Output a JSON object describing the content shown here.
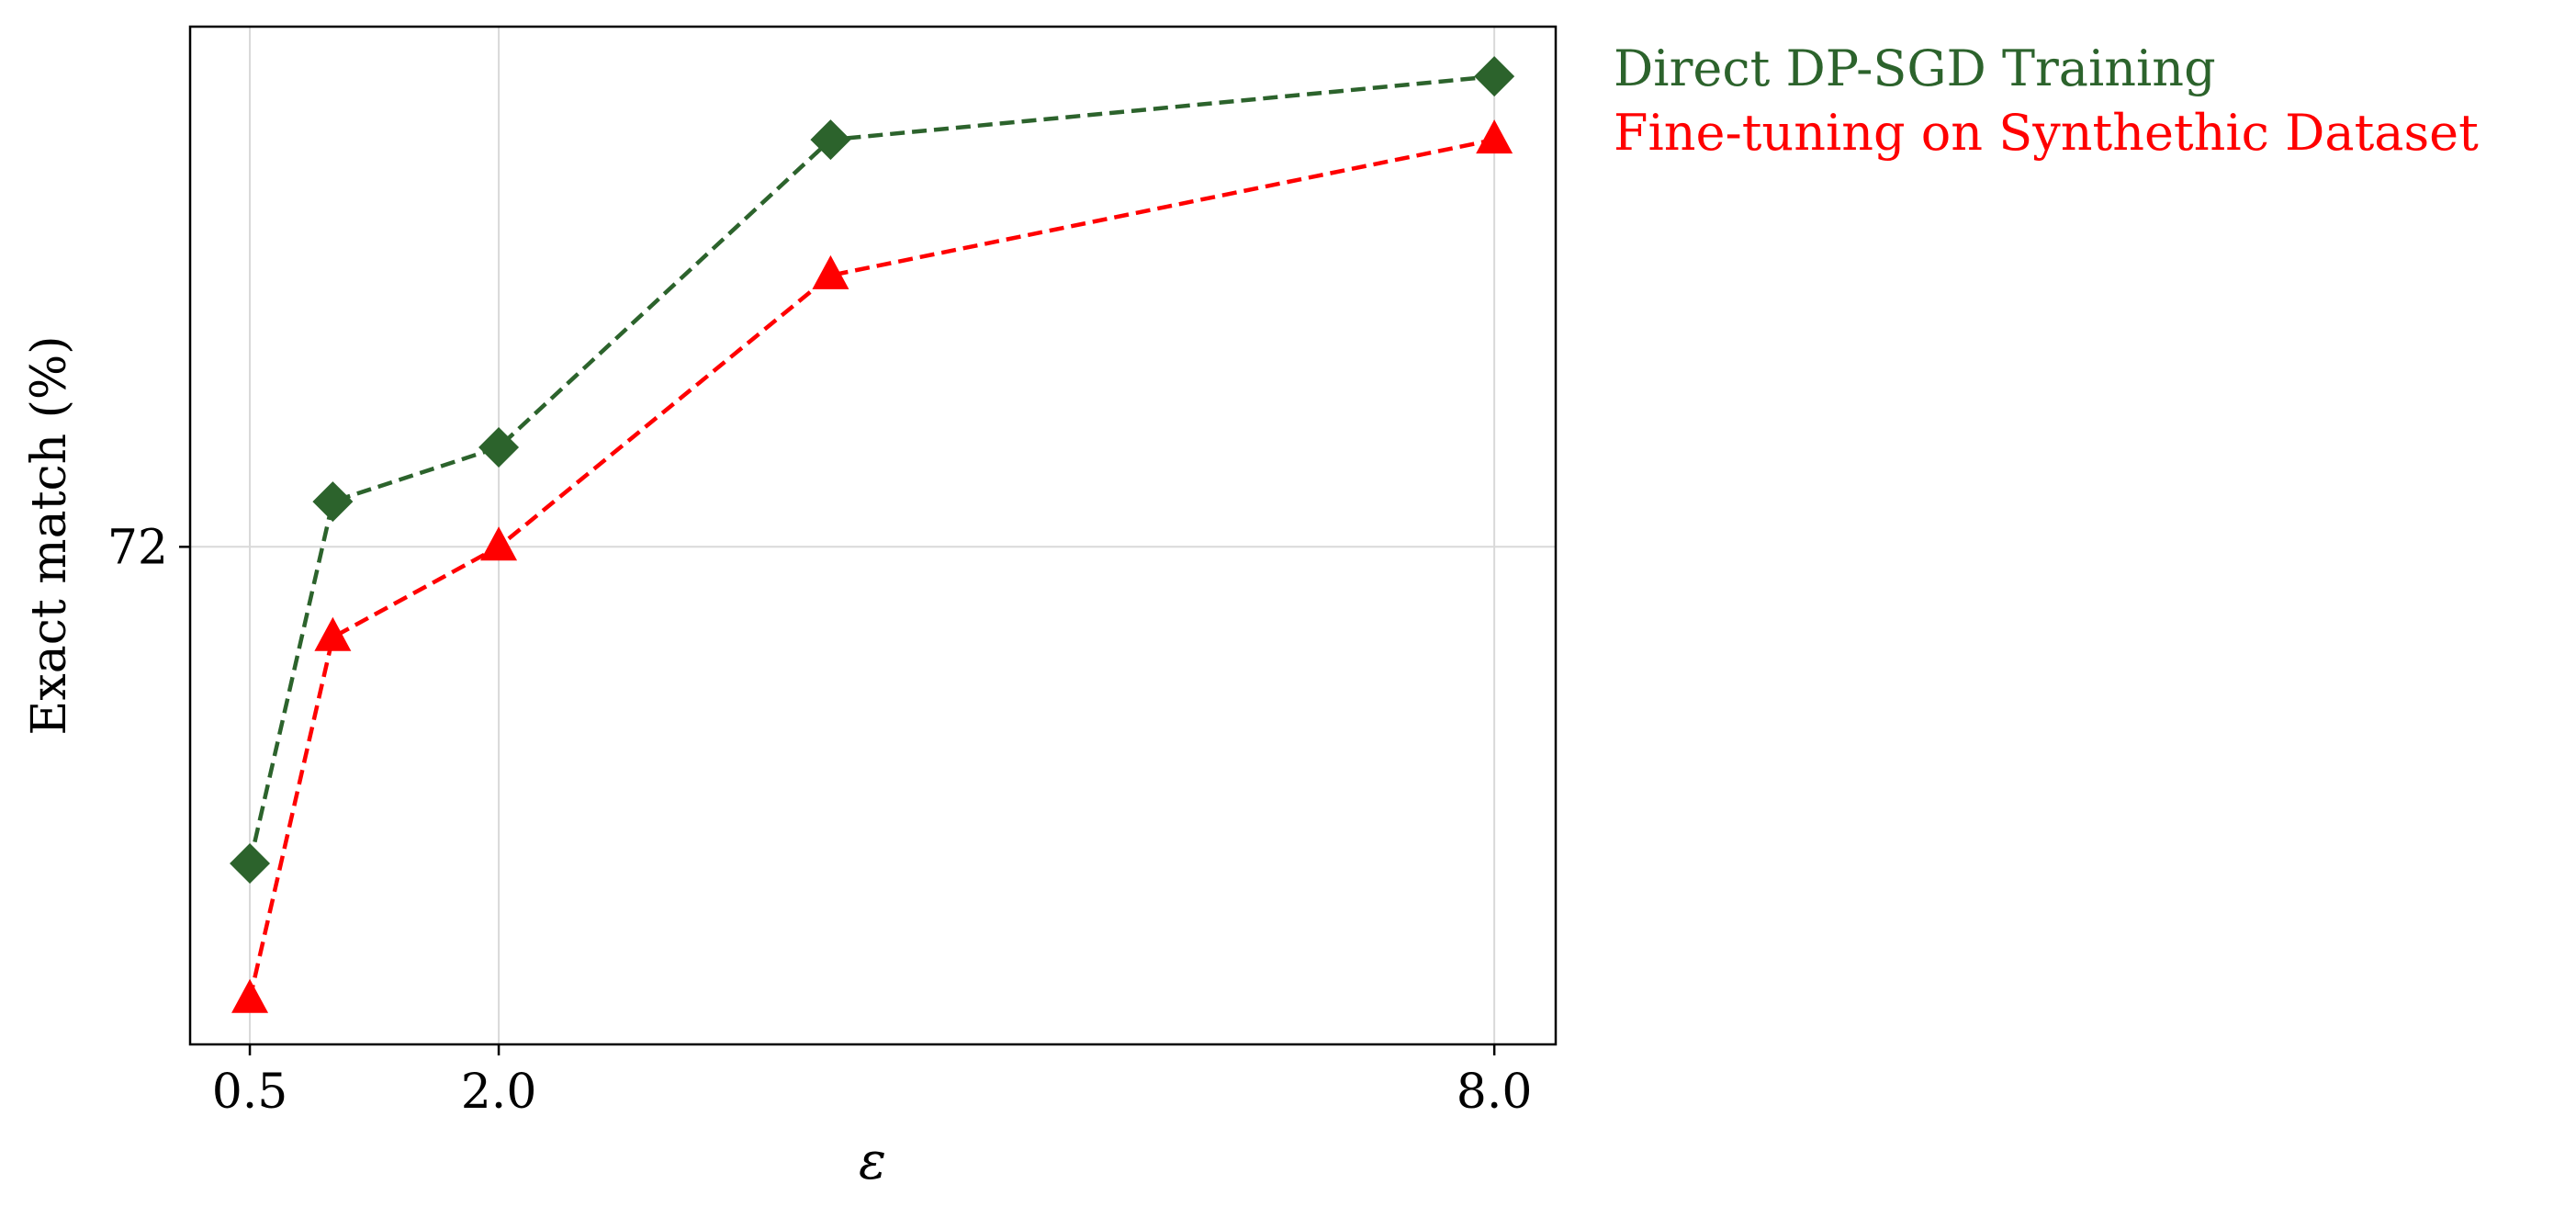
{
  "chart_data": {
    "type": "line",
    "xlabel": "ε",
    "ylabel": "Exact match (%)",
    "x_ticks": [
      {
        "value": 0.5,
        "label": "0.5"
      },
      {
        "value": 2.0,
        "label": "2.0"
      },
      {
        "value": 8.0,
        "label": "8.0"
      }
    ],
    "y_ticks": [
      {
        "value": 72,
        "label": "72"
      }
    ],
    "xlim": [
      0.14,
      8.37
    ],
    "ylim": [
      70.9,
      73.15
    ],
    "grid": true,
    "legend_position": "outside-top-right",
    "series": [
      {
        "name": "Direct DP-SGD Training",
        "color": "#2c632c",
        "marker": "diamond",
        "line_style": "dashed",
        "x": [
          0.5,
          1.0,
          2.0,
          4.0,
          8.0
        ],
        "y": [
          71.3,
          72.1,
          72.22,
          72.9,
          73.04
        ]
      },
      {
        "name": "Fine-tuning on Synthethic Dataset",
        "color": "#ff0000",
        "marker": "triangle",
        "line_style": "dashed",
        "x": [
          0.5,
          1.0,
          2.0,
          4.0,
          8.0
        ],
        "y": [
          71.0,
          71.8,
          72.0,
          72.6,
          72.9
        ]
      }
    ]
  }
}
